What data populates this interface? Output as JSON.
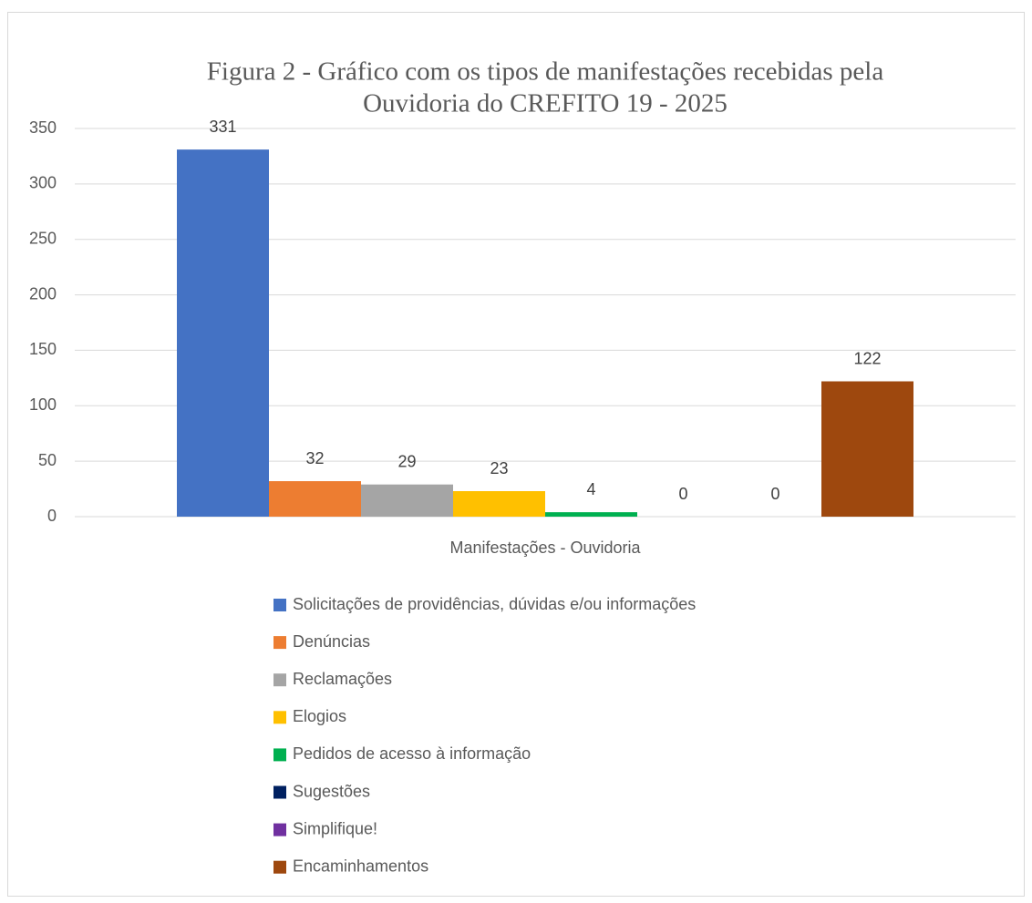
{
  "chart_data": {
    "type": "bar",
    "title": [
      "Figura 2 - Gráfico com os tipos de manifestações recebidas pela",
      "Ouvidoria do CREFITO 19 - 2025"
    ],
    "categories": [
      "Manifestações - Ouvidoria"
    ],
    "series": [
      {
        "name": "Solicitações de providências, dúvidas e/ou informações",
        "color": "#4472c4",
        "values": [
          331
        ]
      },
      {
        "name": "Denúncias",
        "color": "#ed7d31",
        "values": [
          32
        ]
      },
      {
        "name": "Reclamações",
        "color": "#a5a5a5",
        "values": [
          29
        ]
      },
      {
        "name": "Elogios",
        "color": "#ffc000",
        "values": [
          23
        ]
      },
      {
        "name": "Pedidos de acesso à informação",
        "color": "#00b050",
        "values": [
          4
        ]
      },
      {
        "name": "Sugestões",
        "color": "#002060",
        "values": [
          0
        ]
      },
      {
        "name": "Simplifique!",
        "color": "#7030a0",
        "values": [
          0
        ]
      },
      {
        "name": "Encaminhamentos",
        "color": "#9e480e",
        "values": [
          122
        ]
      }
    ],
    "ylim": [
      0,
      350
    ],
    "yticks": [
      0,
      50,
      100,
      150,
      200,
      250,
      300,
      350
    ],
    "grid": true,
    "legend": "bottom"
  }
}
